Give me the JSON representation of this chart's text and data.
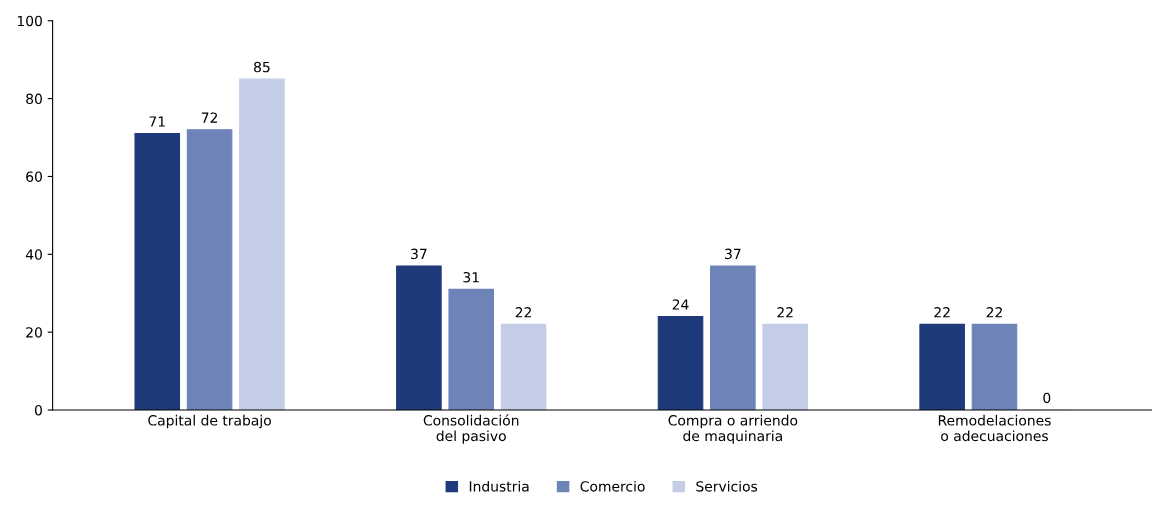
{
  "chart_data": {
    "type": "bar",
    "categories": [
      "Capital de trabajo",
      "Consolidación\ndel pasivo",
      "Compra o arriendo\nde maquinaria",
      "Remodelaciones\no adecuaciones"
    ],
    "series": [
      {
        "name": "Industria",
        "color": "#1f3a7a",
        "values": [
          71,
          37,
          24,
          22
        ]
      },
      {
        "name": "Comercio",
        "color": "#6e84b9",
        "values": [
          72,
          31,
          37,
          22
        ]
      },
      {
        "name": "Servicios",
        "color": "#c4cde6",
        "values": [
          85,
          22,
          22,
          0
        ]
      }
    ],
    "ylim": [
      0,
      100
    ],
    "yticks": [
      0,
      20,
      40,
      60,
      80,
      100
    ],
    "data_labels": true,
    "grid": false,
    "legend": "bottom"
  }
}
